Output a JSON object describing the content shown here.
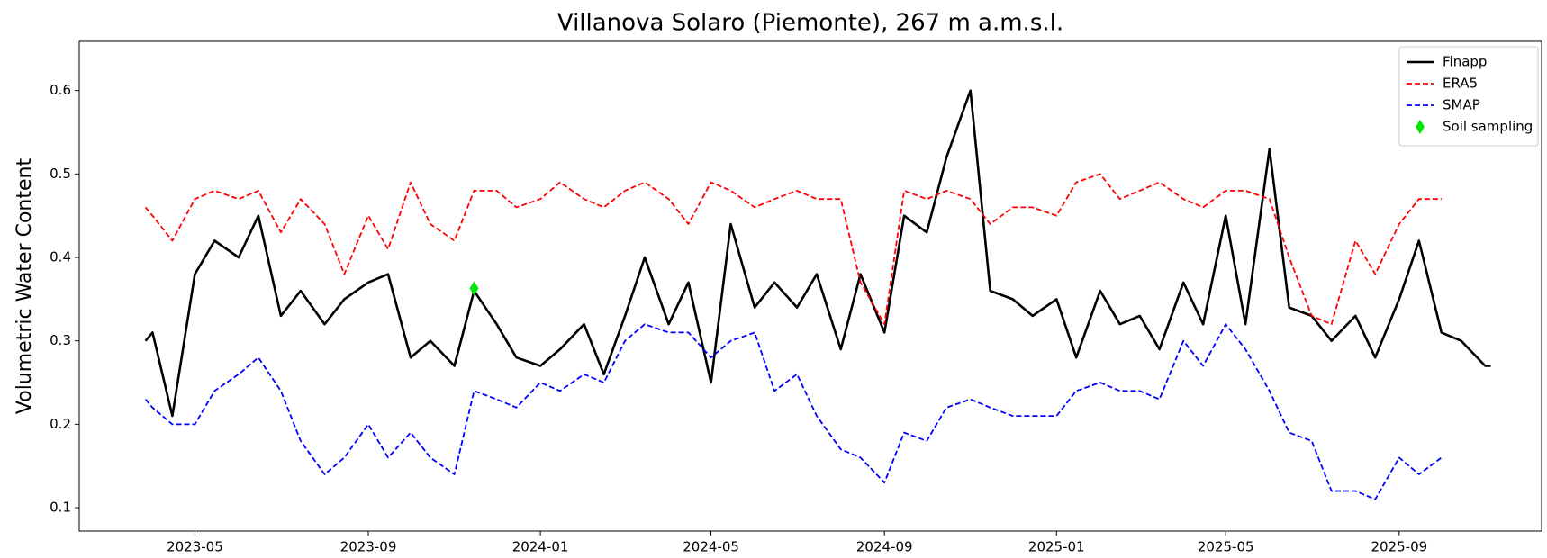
{
  "chart_data": {
    "type": "line",
    "title": "Villanova Solaro (Piemonte), 267 m a.m.s.l.",
    "y_label": "Volumetric Water Content",
    "x": [
      "2023-03-27",
      "2023-04-01",
      "2023-04-15",
      "2023-05-01",
      "2023-05-15",
      "2023-06-01",
      "2023-06-15",
      "2023-07-01",
      "2023-07-15",
      "2023-08-01",
      "2023-08-15",
      "2023-09-01",
      "2023-09-15",
      "2023-10-01",
      "2023-10-15",
      "2023-11-01",
      "2023-11-15",
      "2023-12-01",
      "2023-12-15",
      "2024-01-01",
      "2024-01-15",
      "2024-02-01",
      "2024-02-15",
      "2024-03-01",
      "2024-03-15",
      "2024-04-01",
      "2024-04-15",
      "2024-05-01",
      "2024-05-15",
      "2024-06-01",
      "2024-06-15",
      "2024-07-01",
      "2024-07-15",
      "2024-08-01",
      "2024-08-15",
      "2024-09-01",
      "2024-09-15",
      "2024-10-01",
      "2024-10-15",
      "2024-11-01",
      "2024-11-15",
      "2024-12-01",
      "2024-12-15",
      "2025-01-01",
      "2025-01-15",
      "2025-02-01",
      "2025-02-15",
      "2025-03-01",
      "2025-03-15",
      "2025-04-01",
      "2025-04-15",
      "2025-05-01",
      "2025-05-15",
      "2025-06-01",
      "2025-06-15",
      "2025-07-01",
      "2025-07-15",
      "2025-08-01",
      "2025-08-15",
      "2025-09-01",
      "2025-09-15",
      "2025-10-01",
      "2025-10-15",
      "2025-11-01",
      "2025-11-05"
    ],
    "series": [
      {
        "name": "Finapp",
        "color": "#000000",
        "linestyle": "solid",
        "values": [
          0.3,
          0.31,
          0.21,
          0.38,
          0.42,
          0.4,
          0.45,
          0.33,
          0.36,
          0.32,
          0.35,
          0.37,
          0.38,
          0.28,
          0.3,
          0.27,
          0.36,
          0.32,
          0.28,
          0.27,
          0.29,
          0.32,
          0.26,
          0.33,
          0.4,
          0.32,
          0.37,
          0.25,
          0.44,
          0.34,
          0.37,
          0.34,
          0.38,
          0.29,
          0.38,
          0.31,
          0.45,
          0.43,
          0.52,
          0.6,
          0.36,
          0.35,
          0.33,
          0.35,
          0.28,
          0.36,
          0.32,
          0.33,
          0.29,
          0.37,
          0.32,
          0.45,
          0.32,
          0.53,
          0.34,
          0.33,
          0.3,
          0.33,
          0.28,
          0.35,
          0.42,
          0.31,
          0.3,
          0.27,
          0.27
        ]
      },
      {
        "name": "ERA5",
        "color": "#ff0000",
        "linestyle": "dashed",
        "values": [
          0.46,
          0.45,
          0.42,
          0.47,
          0.48,
          0.47,
          0.48,
          0.43,
          0.47,
          0.44,
          0.38,
          0.45,
          0.41,
          0.49,
          0.44,
          0.42,
          0.48,
          0.48,
          0.46,
          0.47,
          0.49,
          0.47,
          0.46,
          0.48,
          0.49,
          0.47,
          0.44,
          0.49,
          0.48,
          0.46,
          0.47,
          0.48,
          0.47,
          0.47,
          0.37,
          0.32,
          0.48,
          0.47,
          0.48,
          0.47,
          0.44,
          0.46,
          0.46,
          0.45,
          0.49,
          0.5,
          0.47,
          0.48,
          0.49,
          0.47,
          0.46,
          0.48,
          0.48,
          0.47,
          0.4,
          0.33,
          0.32,
          0.42,
          0.38,
          0.44,
          0.47,
          0.47,
          null,
          null,
          null
        ]
      },
      {
        "name": "SMAP",
        "color": "#0000ff",
        "linestyle": "dashed",
        "values": [
          0.23,
          0.22,
          0.2,
          0.2,
          0.24,
          0.26,
          0.28,
          0.24,
          0.18,
          0.14,
          0.16,
          0.2,
          0.16,
          0.19,
          0.16,
          0.14,
          0.24,
          0.23,
          0.22,
          0.25,
          0.24,
          0.26,
          0.25,
          0.3,
          0.32,
          0.31,
          0.31,
          0.28,
          0.3,
          0.31,
          0.24,
          0.26,
          0.21,
          0.17,
          0.16,
          0.13,
          0.19,
          0.18,
          0.22,
          0.23,
          0.22,
          0.21,
          0.21,
          0.21,
          0.24,
          0.25,
          0.24,
          0.24,
          0.23,
          0.3,
          0.27,
          0.32,
          0.29,
          0.24,
          0.19,
          0.18,
          0.12,
          0.12,
          0.11,
          0.16,
          0.14,
          0.16,
          null,
          null,
          null
        ]
      }
    ],
    "points": [
      {
        "name": "Soil sampling",
        "color": "#00e600",
        "x": "2023-11-15",
        "y": 0.363
      }
    ],
    "xlim": [
      "2023-02-08",
      "2025-12-11"
    ],
    "xticks": [
      {
        "value": "2023-05-01",
        "label": "2023-05"
      },
      {
        "value": "2023-09-01",
        "label": "2023-09"
      },
      {
        "value": "2024-01-01",
        "label": "2024-01"
      },
      {
        "value": "2024-05-01",
        "label": "2024-05"
      },
      {
        "value": "2024-09-01",
        "label": "2024-09"
      },
      {
        "value": "2025-01-01",
        "label": "2025-01"
      },
      {
        "value": "2025-05-01",
        "label": "2025-05"
      },
      {
        "value": "2025-09-01",
        "label": "2025-09"
      }
    ],
    "ylim": [
      0.072,
      0.659
    ],
    "yticks": [
      0.1,
      0.2,
      0.3,
      0.4,
      0.5,
      0.6
    ],
    "legend": "upper right"
  }
}
